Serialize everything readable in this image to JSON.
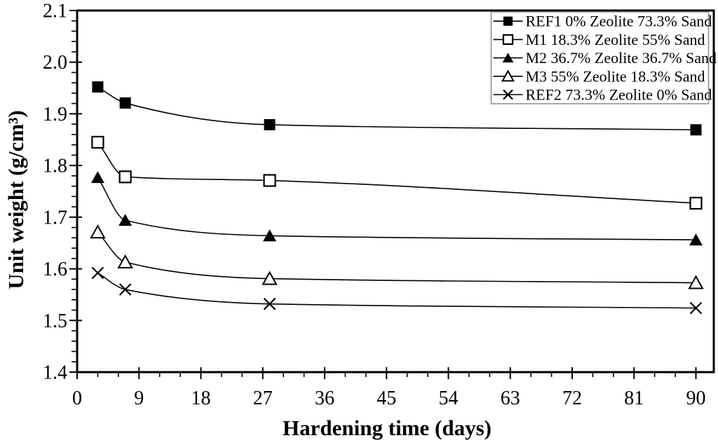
{
  "chart_data": {
    "type": "line",
    "title": "",
    "xlabel": "Hardening time (days)",
    "ylabel": "Unit weight (g/cm³)",
    "x": [
      3,
      7,
      28,
      90
    ],
    "series": [
      {
        "name": "REF1 0% Zeolite 73.3% Sand",
        "marker": "filled-square",
        "values": [
          1.952,
          1.921,
          1.879,
          1.869
        ]
      },
      {
        "name": "M1 18.3% Zeolite 55% Sand",
        "marker": "open-square",
        "values": [
          1.845,
          1.778,
          1.771,
          1.727
        ]
      },
      {
        "name": "M2 36.7% Zeolite 36.7% Sand",
        "marker": "filled-triangle",
        "values": [
          1.777,
          1.694,
          1.664,
          1.656
        ]
      },
      {
        "name": "M3 55% Zeolite 18.3% Sand",
        "marker": "open-triangle",
        "values": [
          1.671,
          1.613,
          1.581,
          1.573
        ]
      },
      {
        "name": "REF2 73.3% Zeolite 0% Sand",
        "marker": "x-cross",
        "values": [
          1.592,
          1.56,
          1.532,
          1.524
        ]
      }
    ],
    "xlim": [
      0,
      92.6
    ],
    "ylim": [
      1.4,
      2.1
    ],
    "x_major_ticks": [
      0,
      9,
      18,
      27,
      36,
      45,
      54,
      63,
      72,
      81,
      90
    ],
    "x_minor_step": 3,
    "y_major_step": 0.1,
    "y_minor_step": 0.02,
    "y_tick_decimals": 1,
    "grid": false,
    "legend_position": "top-right",
    "line_color": "#000000",
    "frame_color": "#000000",
    "legend_border_color": "#8c8c8c",
    "background": "#ffffff"
  }
}
